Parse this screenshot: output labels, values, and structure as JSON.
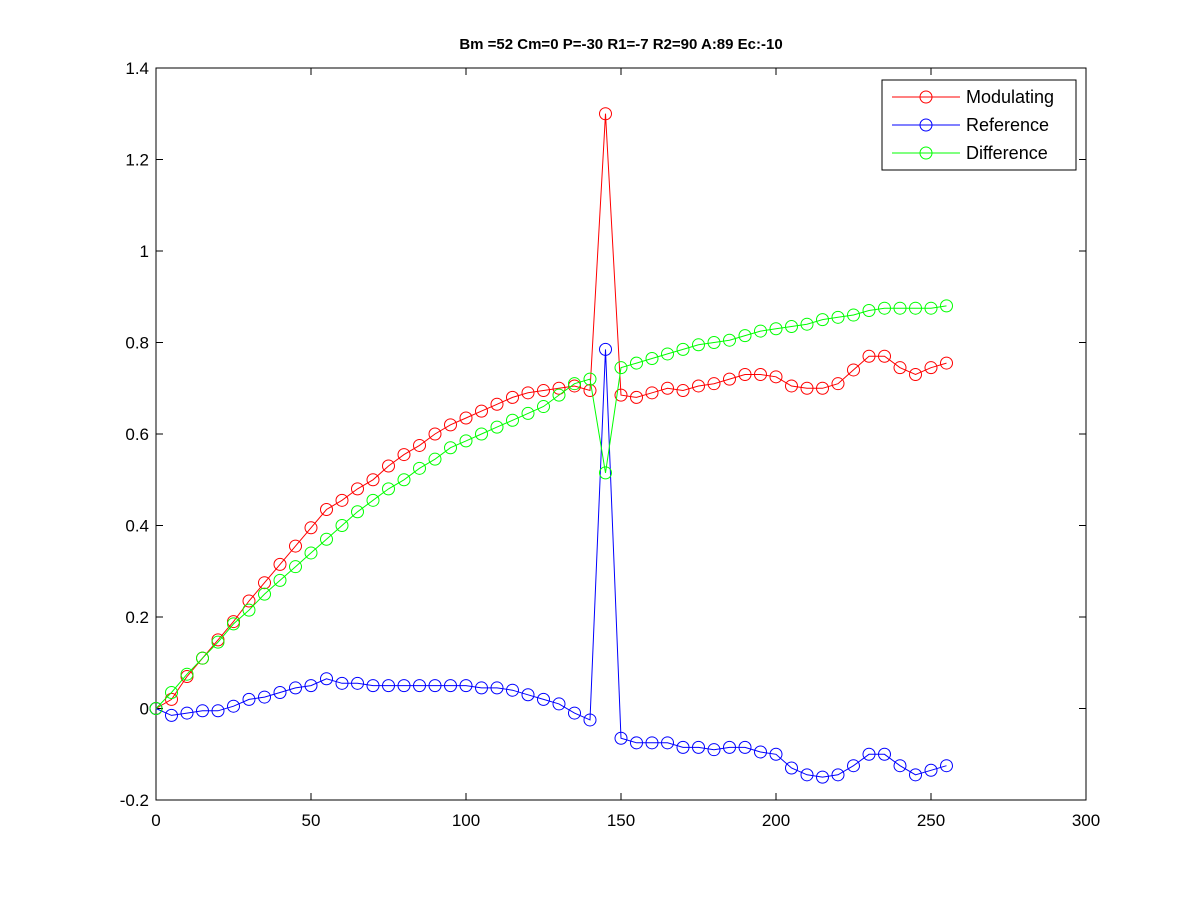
{
  "chart_data": {
    "type": "line",
    "title": "Bm =52  Cm=0  P=-30  R1=-7  R2=90  A:89  Ec:-10",
    "xlabel": "",
    "ylabel": "",
    "xlim": [
      0,
      300
    ],
    "ylim": [
      -0.2,
      1.4
    ],
    "xticks": [
      0,
      50,
      100,
      150,
      200,
      250,
      300
    ],
    "yticks": [
      -0.2,
      0,
      0.2,
      0.4,
      0.6,
      0.8,
      1.0,
      1.2,
      1.4
    ],
    "xtick_labels": [
      "0",
      "50",
      "100",
      "150",
      "200",
      "250",
      "300"
    ],
    "ytick_labels": [
      "-0.2",
      "0",
      "0.2",
      "0.4",
      "0.6",
      "0.8",
      "1",
      "1.2",
      "1.4"
    ],
    "grid": false,
    "legend_position": "top-right",
    "x": [
      0,
      5,
      10,
      15,
      20,
      25,
      30,
      35,
      40,
      45,
      50,
      55,
      60,
      65,
      70,
      75,
      80,
      85,
      90,
      95,
      100,
      105,
      110,
      115,
      120,
      125,
      130,
      135,
      140,
      145,
      150,
      155,
      160,
      165,
      170,
      175,
      180,
      185,
      190,
      195,
      200,
      205,
      210,
      215,
      220,
      225,
      230,
      235,
      240,
      245,
      250,
      255
    ],
    "series": [
      {
        "name": "Modulating",
        "color": "#ff0000",
        "values": [
          0.0,
          0.02,
          0.07,
          0.11,
          0.15,
          0.19,
          0.235,
          0.275,
          0.315,
          0.355,
          0.395,
          0.435,
          0.455,
          0.48,
          0.5,
          0.53,
          0.555,
          0.575,
          0.6,
          0.62,
          0.635,
          0.65,
          0.665,
          0.68,
          0.69,
          0.695,
          0.7,
          0.705,
          0.695,
          1.3,
          0.685,
          0.68,
          0.69,
          0.7,
          0.695,
          0.705,
          0.71,
          0.72,
          0.73,
          0.73,
          0.725,
          0.705,
          0.7,
          0.7,
          0.71,
          0.74,
          0.77,
          0.77,
          0.745,
          0.73,
          0.745,
          0.755
        ]
      },
      {
        "name": "Reference",
        "color": "#0000ff",
        "values": [
          0.0,
          -0.015,
          -0.01,
          -0.005,
          -0.005,
          0.005,
          0.02,
          0.025,
          0.035,
          0.045,
          0.05,
          0.065,
          0.055,
          0.055,
          0.05,
          0.05,
          0.05,
          0.05,
          0.05,
          0.05,
          0.05,
          0.045,
          0.045,
          0.04,
          0.03,
          0.02,
          0.01,
          -0.01,
          -0.025,
          0.785,
          -0.065,
          -0.075,
          -0.075,
          -0.075,
          -0.085,
          -0.085,
          -0.09,
          -0.085,
          -0.085,
          -0.095,
          -0.1,
          -0.13,
          -0.145,
          -0.15,
          -0.145,
          -0.125,
          -0.1,
          -0.1,
          -0.125,
          -0.145,
          -0.135,
          -0.125
        ]
      },
      {
        "name": "Difference",
        "color": "#00ff00",
        "values": [
          0.0,
          0.035,
          0.075,
          0.11,
          0.145,
          0.185,
          0.215,
          0.25,
          0.28,
          0.31,
          0.34,
          0.37,
          0.4,
          0.43,
          0.455,
          0.48,
          0.5,
          0.525,
          0.545,
          0.57,
          0.585,
          0.6,
          0.615,
          0.63,
          0.645,
          0.66,
          0.685,
          0.71,
          0.72,
          0.515,
          0.745,
          0.755,
          0.765,
          0.775,
          0.785,
          0.795,
          0.8,
          0.805,
          0.815,
          0.825,
          0.83,
          0.835,
          0.84,
          0.85,
          0.855,
          0.86,
          0.87,
          0.875,
          0.875,
          0.875,
          0.875,
          0.88
        ]
      }
    ]
  }
}
